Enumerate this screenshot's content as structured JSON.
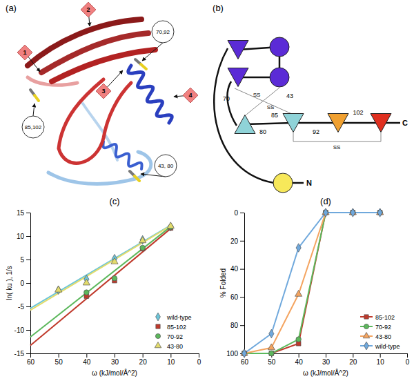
{
  "panels": {
    "a": {
      "label": "(a)",
      "markers": [
        "1",
        "2",
        "3",
        "4"
      ],
      "bonds": [
        "70,92",
        "85,102",
        "43, 80"
      ]
    },
    "b": {
      "label": "(b)",
      "residues": [
        "43",
        "70",
        "80",
        "85",
        "92",
        "102"
      ],
      "bond_labels": [
        "SS",
        "SS",
        "SS"
      ],
      "termini": [
        "N",
        "C"
      ]
    }
  },
  "chart_data": [
    {
      "type": "scatter",
      "title": "(c)",
      "x_label": "ω (kJ/mol/Å^2)",
      "y_label": "ln( ku ), 1/s",
      "x": [
        50,
        40,
        30,
        20,
        10
      ],
      "series": [
        {
          "name": "wild-type",
          "color": "#6cc5d9",
          "marker": "diamond",
          "values": [
            -1.5,
            0.8,
            5.2,
            9.2,
            12.0
          ],
          "fit": {
            "x": [
              60,
              10
            ],
            "values": [
              -5.4,
              12.3
            ]
          }
        },
        {
          "name": "85-102",
          "color": "#c0392b",
          "marker": "square",
          "values": [
            null,
            -2.8,
            0.5,
            7.3,
            11.7
          ],
          "fit": {
            "x": [
              60,
              10
            ],
            "values": [
              -13.3,
              11.6
            ]
          }
        },
        {
          "name": "70-92",
          "color": "#5cb85c",
          "marker": "circle",
          "values": [
            null,
            -2.0,
            1.0,
            7.5,
            11.9
          ],
          "fit": {
            "x": [
              60,
              10
            ],
            "values": [
              -11.5,
              12.0
            ]
          }
        },
        {
          "name": "43-80",
          "color": "#e3dc6c",
          "marker": "triangle",
          "values": [
            -1.5,
            0.0,
            4.5,
            9.0,
            12.1
          ],
          "fit": {
            "x": [
              60,
              10
            ],
            "values": [
              -5.8,
              12.2
            ]
          }
        }
      ],
      "xlim": [
        60,
        0
      ],
      "xticks": [
        60,
        50,
        40,
        30,
        20,
        10,
        0
      ],
      "ylim": [
        -15,
        15
      ],
      "yticks": [
        -15,
        -10,
        -5,
        0,
        5,
        10,
        15
      ],
      "grid": false,
      "legend": "lower right"
    },
    {
      "type": "line",
      "title": "(d)",
      "x_label": "ω (kJ/mol/Å^2)",
      "y_label": "% Folded",
      "x": [
        60,
        50,
        40,
        30,
        20,
        10
      ],
      "series": [
        {
          "name": "85-102",
          "color": "#c0392b",
          "marker": "square",
          "values": [
            100,
            100,
            93,
            0,
            0,
            0
          ]
        },
        {
          "name": "70-92",
          "color": "#5cb85c",
          "marker": "circle",
          "values": [
            100,
            100,
            90,
            0,
            0,
            0
          ]
        },
        {
          "name": "43-80",
          "color": "#f4a460",
          "marker": "triangle",
          "values": [
            100,
            96,
            58,
            0,
            0,
            0
          ]
        },
        {
          "name": "wild-type",
          "color": "#6fa8dc",
          "marker": "diamond",
          "values": [
            100,
            86,
            25,
            0,
            0,
            0
          ]
        }
      ],
      "xlim": [
        60,
        0
      ],
      "xticks": [
        60,
        50,
        40,
        30,
        20,
        10,
        0
      ],
      "ylim": [
        100,
        0
      ],
      "yticks": [
        0,
        20,
        40,
        60,
        80,
        100
      ],
      "grid": false,
      "legend": "lower right"
    }
  ]
}
